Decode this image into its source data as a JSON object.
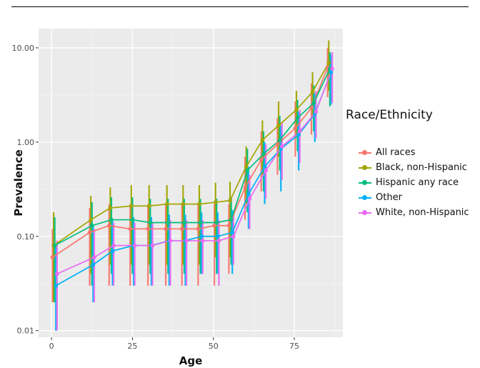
{
  "chart_data": {
    "type": "line",
    "xlabel": "Age",
    "ylabel": "Prevalence",
    "x_ticks": [
      "0",
      "25",
      "50",
      "75"
    ],
    "y_ticks": [
      "0.01",
      "0.10",
      "1.00",
      "10.00"
    ],
    "xlim": [
      -4,
      90
    ],
    "ylim": [
      0.0085,
      16
    ],
    "y_scale": "log",
    "grid": true,
    "legend_title": "Race/Ethnicity",
    "legend_position": "right",
    "x": [
      1,
      12.5,
      18.5,
      25,
      30.5,
      36,
      41,
      46,
      51,
      55.5,
      60.5,
      65.5,
      70.5,
      76,
      81,
      86
    ],
    "series": [
      {
        "name": "All races",
        "color": "#F8766D",
        "values": [
          0.06,
          0.11,
          0.13,
          0.12,
          0.12,
          0.12,
          0.12,
          0.12,
          0.13,
          0.13,
          0.33,
          0.65,
          0.95,
          1.4,
          2.3,
          6.2
        ],
        "err_low": [
          0.02,
          0.03,
          0.03,
          0.03,
          0.03,
          0.03,
          0.03,
          0.03,
          0.03,
          0.04,
          0.15,
          0.3,
          0.45,
          0.7,
          1.2,
          3.0
        ],
        "err_high": [
          0.12,
          0.2,
          0.22,
          0.22,
          0.22,
          0.22,
          0.22,
          0.22,
          0.22,
          0.22,
          0.7,
          1.3,
          1.8,
          2.7,
          4.2,
          10.0
        ]
      },
      {
        "name": "Black, non-Hispanic",
        "color": "#A3A500",
        "values": [
          0.08,
          0.15,
          0.2,
          0.21,
          0.21,
          0.22,
          0.22,
          0.22,
          0.23,
          0.24,
          0.55,
          1.05,
          1.5,
          2.2,
          3.4,
          7.0
        ],
        "err_low": [
          0.02,
          0.04,
          0.05,
          0.05,
          0.05,
          0.05,
          0.05,
          0.05,
          0.06,
          0.06,
          0.22,
          0.45,
          0.7,
          1.1,
          1.8,
          3.5
        ],
        "err_high": [
          0.18,
          0.27,
          0.33,
          0.35,
          0.35,
          0.35,
          0.35,
          0.35,
          0.37,
          0.38,
          0.9,
          1.7,
          2.7,
          3.5,
          5.5,
          12.0
        ]
      },
      {
        "name": "Hispanic any race",
        "color": "#00BF7D",
        "values": [
          0.08,
          0.13,
          0.15,
          0.15,
          0.14,
          0.14,
          0.14,
          0.14,
          0.14,
          0.15,
          0.5,
          0.75,
          1.05,
          1.8,
          2.6,
          6.0
        ],
        "err_low": [
          0.02,
          0.03,
          0.04,
          0.04,
          0.04,
          0.04,
          0.04,
          0.04,
          0.04,
          0.05,
          0.18,
          0.3,
          0.5,
          0.8,
          1.3,
          2.4
        ],
        "err_high": [
          0.16,
          0.23,
          0.26,
          0.26,
          0.25,
          0.25,
          0.25,
          0.25,
          0.25,
          0.26,
          0.85,
          1.3,
          1.9,
          2.8,
          4.0,
          9.0
        ]
      },
      {
        "name": "Other",
        "color": "#00B0F6",
        "values": [
          0.03,
          0.05,
          0.07,
          0.08,
          0.08,
          0.09,
          0.09,
          0.1,
          0.1,
          0.11,
          0.28,
          0.55,
          0.85,
          1.2,
          2.0,
          5.5
        ],
        "err_low": [
          0.01,
          0.02,
          0.03,
          0.03,
          0.03,
          0.03,
          0.03,
          0.04,
          0.04,
          0.04,
          0.12,
          0.22,
          0.3,
          0.5,
          1.0,
          2.5
        ],
        "err_high": [
          0.08,
          0.13,
          0.15,
          0.16,
          0.16,
          0.17,
          0.17,
          0.18,
          0.18,
          0.19,
          0.55,
          1.0,
          1.5,
          2.1,
          3.3,
          8.5
        ]
      },
      {
        "name": "White, non-Hispanic",
        "color": "#E76BF3",
        "values": [
          0.04,
          0.06,
          0.08,
          0.08,
          0.08,
          0.09,
          0.09,
          0.09,
          0.09,
          0.1,
          0.25,
          0.5,
          0.9,
          1.3,
          2.1,
          6.0
        ],
        "err_low": [
          0.01,
          0.02,
          0.03,
          0.03,
          0.03,
          0.03,
          0.03,
          0.04,
          0.03,
          0.05,
          0.12,
          0.25,
          0.4,
          0.6,
          1.1,
          2.6
        ],
        "err_high": [
          0.09,
          0.12,
          0.14,
          0.14,
          0.14,
          0.15,
          0.15,
          0.15,
          0.15,
          0.17,
          0.45,
          0.95,
          1.6,
          2.2,
          3.5,
          9.0
        ]
      }
    ]
  }
}
